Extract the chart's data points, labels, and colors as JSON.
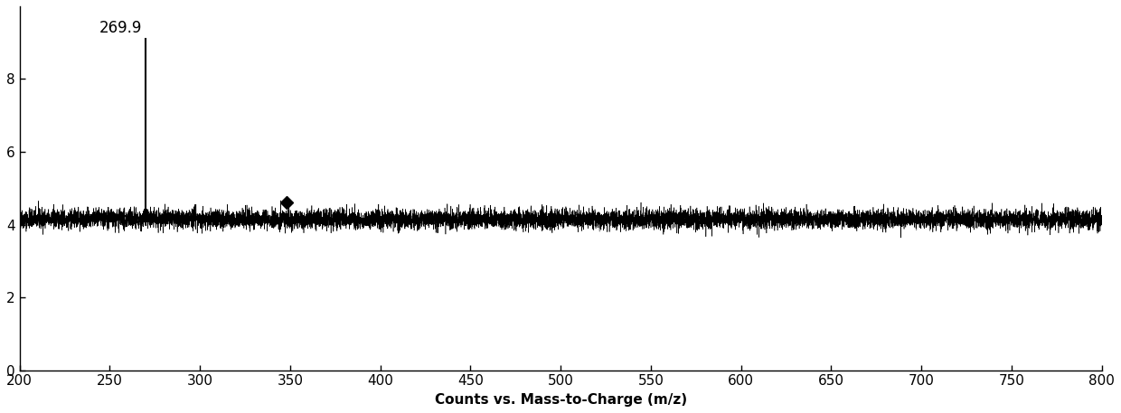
{
  "title": "",
  "xlabel": "Counts vs. Mass-to-Charge (m/z)",
  "xlim": [
    200,
    800
  ],
  "ylim": [
    0,
    10
  ],
  "yticks": [
    0,
    2,
    4,
    6,
    8
  ],
  "xticks": [
    200,
    250,
    300,
    350,
    400,
    450,
    500,
    550,
    600,
    650,
    700,
    750,
    800
  ],
  "peak_x": 269.9,
  "peak_y": 9.1,
  "peak_label": "269.9",
  "baseline_level": 4.15,
  "noise_amplitude": 0.13,
  "diamond_x": 348,
  "diamond_y": 4.6,
  "background_color": "#ffffff",
  "line_color": "#000000",
  "seed": 42
}
